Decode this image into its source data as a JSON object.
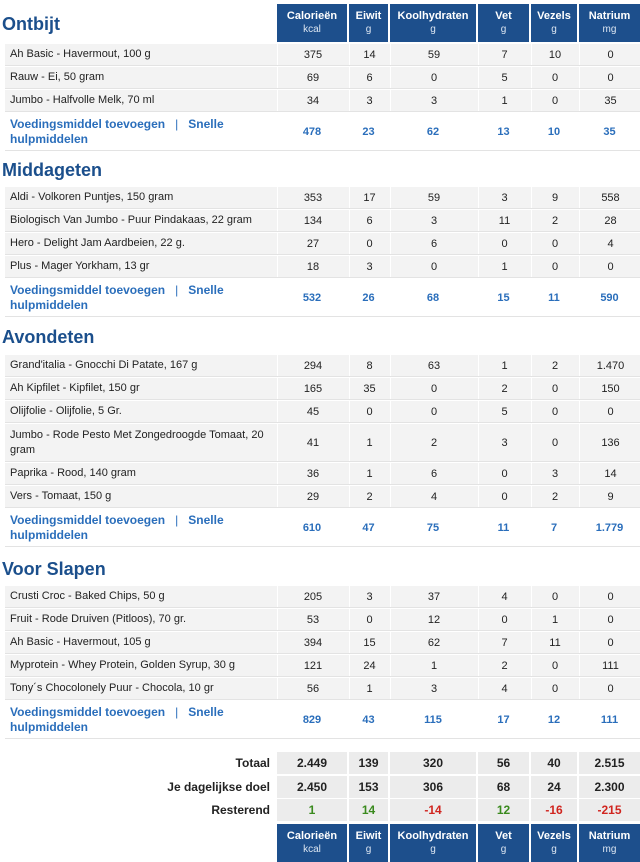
{
  "columns": [
    {
      "label": "Calorieën",
      "unit": "kcal"
    },
    {
      "label": "Eiwit",
      "unit": "g"
    },
    {
      "label": "Koolhydraten",
      "unit": "g"
    },
    {
      "label": "Vet",
      "unit": "g"
    },
    {
      "label": "Vezels",
      "unit": "g"
    },
    {
      "label": "Natrium",
      "unit": "mg"
    }
  ],
  "add_food_label": "Voedingsmiddel toevoegen",
  "separator": "|",
  "quick_tools_label": "Snelle hulpmiddelen",
  "meals": [
    {
      "title": "Ontbijt",
      "items": [
        {
          "name": "Ah Basic - Havermout, 100 g",
          "values": [
            "375",
            "14",
            "59",
            "7",
            "10",
            "0"
          ]
        },
        {
          "name": "Rauw - Ei, 50 gram",
          "values": [
            "69",
            "6",
            "0",
            "5",
            "0",
            "0"
          ]
        },
        {
          "name": "Jumbo - Halfvolle Melk, 70 ml",
          "values": [
            "34",
            "3",
            "3",
            "1",
            "0",
            "35"
          ]
        }
      ],
      "totals": [
        "478",
        "23",
        "62",
        "13",
        "10",
        "35"
      ]
    },
    {
      "title": "Middageten",
      "items": [
        {
          "name": "Aldi - Volkoren Puntjes, 150 gram",
          "values": [
            "353",
            "17",
            "59",
            "3",
            "9",
            "558"
          ]
        },
        {
          "name": "Biologisch Van Jumbo - Puur Pindakaas, 22 gram",
          "values": [
            "134",
            "6",
            "3",
            "11",
            "2",
            "28"
          ]
        },
        {
          "name": "Hero - Delight Jam Aardbeien, 22 g.",
          "values": [
            "27",
            "0",
            "6",
            "0",
            "0",
            "4"
          ]
        },
        {
          "name": "Plus - Mager Yorkham, 13 gr",
          "values": [
            "18",
            "3",
            "0",
            "1",
            "0",
            "0"
          ]
        }
      ],
      "totals": [
        "532",
        "26",
        "68",
        "15",
        "11",
        "590"
      ]
    },
    {
      "title": "Avondeten",
      "items": [
        {
          "name": "Grand'italia - Gnocchi Di Patate, 167 g",
          "values": [
            "294",
            "8",
            "63",
            "1",
            "2",
            "1.470"
          ]
        },
        {
          "name": "Ah Kipfilet - Kipfilet, 150 gr",
          "values": [
            "165",
            "35",
            "0",
            "2",
            "0",
            "150"
          ]
        },
        {
          "name": "Olijfolie - Olijfolie, 5 Gr.",
          "values": [
            "45",
            "0",
            "0",
            "5",
            "0",
            "0"
          ]
        },
        {
          "name": "Jumbo - Rode Pesto Met Zongedroogde Tomaat, 20 gram",
          "values": [
            "41",
            "1",
            "2",
            "3",
            "0",
            "136"
          ]
        },
        {
          "name": "Paprika - Rood, 140 gram",
          "values": [
            "36",
            "1",
            "6",
            "0",
            "3",
            "14"
          ]
        },
        {
          "name": "Vers - Tomaat, 150 g",
          "values": [
            "29",
            "2",
            "4",
            "0",
            "2",
            "9"
          ]
        }
      ],
      "totals": [
        "610",
        "47",
        "75",
        "11",
        "7",
        "1.779"
      ]
    },
    {
      "title": "Voor Slapen",
      "items": [
        {
          "name": "Crusti Croc - Baked Chips, 50 g",
          "values": [
            "205",
            "3",
            "37",
            "4",
            "0",
            "0"
          ]
        },
        {
          "name": "Fruit - Rode Druiven (Pitloos), 70 gr.",
          "values": [
            "53",
            "0",
            "12",
            "0",
            "1",
            "0"
          ]
        },
        {
          "name": "Ah Basic - Havermout, 105 g",
          "values": [
            "394",
            "15",
            "62",
            "7",
            "11",
            "0"
          ]
        },
        {
          "name": "Myprotein - Whey Protein, Golden Syrup, 30 g",
          "values": [
            "121",
            "24",
            "1",
            "2",
            "0",
            "111"
          ]
        },
        {
          "name": "Tony´s Chocolonely Puur - Chocola, 10 gr",
          "values": [
            "56",
            "1",
            "3",
            "4",
            "0",
            "0"
          ]
        }
      ],
      "totals": [
        "829",
        "43",
        "115",
        "17",
        "12",
        "111"
      ]
    }
  ],
  "summary": {
    "total": {
      "label": "Totaal",
      "values": [
        "2.449",
        "139",
        "320",
        "56",
        "40",
        "2.515"
      ]
    },
    "goal": {
      "label": "Je dagelijkse doel",
      "values": [
        "2.450",
        "153",
        "306",
        "68",
        "24",
        "2.300"
      ]
    },
    "remaining": {
      "label": "Resterend",
      "values": [
        "1",
        "14",
        "-14",
        "12",
        "-16",
        "-215"
      ],
      "status": [
        "pos",
        "pos",
        "neg",
        "pos",
        "neg",
        "neg"
      ]
    }
  }
}
